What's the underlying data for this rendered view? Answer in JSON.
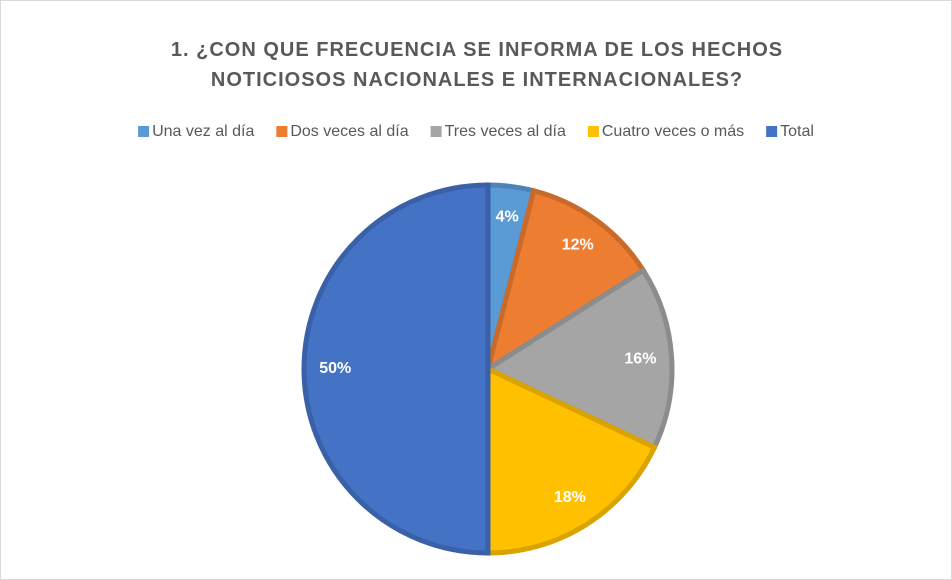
{
  "chart_data": {
    "type": "pie",
    "title": "1. ¿CON QUE FRECUENCIA SE INFORMA DE LOS HECHOS NOTICIOSOS NACIONALES E INTERNACIONALES?",
    "categories": [
      "Una vez al día",
      "Dos veces al día",
      "Tres veces al día",
      "Cuatro veces o más",
      "Total"
    ],
    "values": [
      4,
      12,
      16,
      18,
      50
    ],
    "value_labels": [
      "4%",
      "12%",
      "16%",
      "18%",
      "50%"
    ],
    "colors": [
      "#5b9bd5",
      "#ed7d31",
      "#a5a5a5",
      "#ffc000",
      "#4472c4"
    ],
    "legend": "top"
  }
}
